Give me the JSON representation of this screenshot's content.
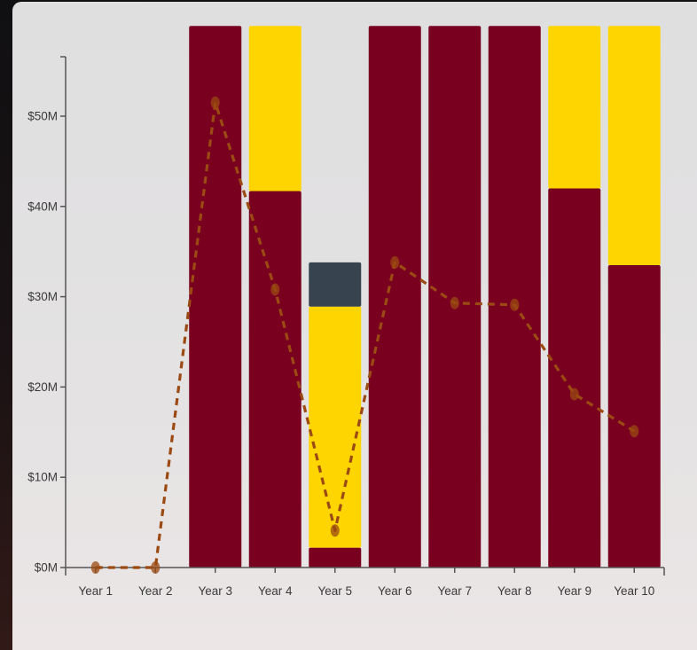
{
  "chart_data": {
    "type": "bar",
    "stacked": true,
    "categories": [
      "Year 1",
      "Year 2",
      "Year 3",
      "Year 4",
      "Year 5",
      "Year 6",
      "Year 7",
      "Year 8",
      "Year 9",
      "Year 10"
    ],
    "ylim": [
      0,
      60
    ],
    "y_ticks": [
      0,
      10,
      20,
      30,
      40,
      50
    ],
    "y_tick_labels": [
      "$0M",
      "$10M",
      "$20M",
      "$30M",
      "$40M",
      "$50M"
    ],
    "series": [
      {
        "color": "#7a0020",
        "values": [
          0,
          0,
          60,
          41.7,
          2.2,
          60,
          60,
          60,
          42,
          33.5
        ]
      },
      {
        "color": "#ffd500",
        "values": [
          0,
          0,
          0,
          18.3,
          26.7,
          0,
          0,
          0,
          18,
          26.5
        ]
      },
      {
        "color": "#37434e",
        "values": [
          0,
          0,
          0,
          0,
          4.9,
          0,
          0,
          0,
          0,
          0
        ]
      }
    ],
    "line_series": {
      "color": "#9a4a12",
      "style": "dashed",
      "values": [
        0,
        0,
        51.5,
        30.8,
        4.1,
        33.8,
        29.3,
        29.1,
        19.2,
        15.1
      ]
    },
    "grid": false,
    "title": "",
    "xlabel": "",
    "ylabel": ""
  }
}
